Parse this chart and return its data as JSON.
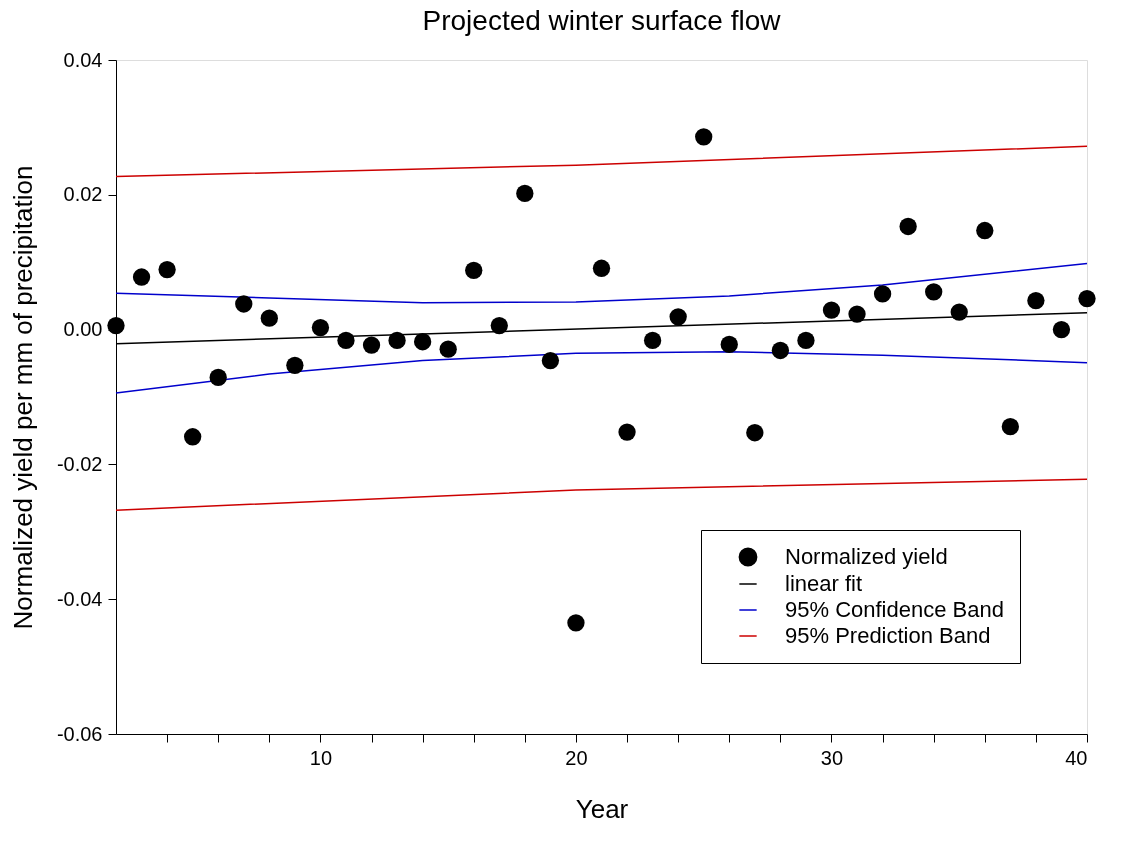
{
  "chart_data": {
    "type": "scatter",
    "title": "Projected winter surface flow",
    "xlabel": "Year",
    "ylabel": "Normalized yield per mm of precipitation",
    "xlim": [
      2,
      40
    ],
    "ylim": [
      -0.06,
      0.04
    ],
    "xticks": [
      {
        "value": 4,
        "label": null
      },
      {
        "value": 6,
        "label": null
      },
      {
        "value": 8,
        "label": null
      },
      10,
      {
        "value": 12,
        "label": null
      },
      {
        "value": 14,
        "label": null
      },
      {
        "value": 16,
        "label": null
      },
      {
        "value": 18,
        "label": null
      },
      20,
      {
        "value": 22,
        "label": null
      },
      {
        "value": 24,
        "label": null
      },
      {
        "value": 26,
        "label": null
      },
      {
        "value": 28,
        "label": null
      },
      30,
      {
        "value": 32,
        "label": null
      },
      {
        "value": 34,
        "label": null
      },
      {
        "value": 36,
        "label": null
      },
      {
        "value": 38,
        "label": null
      },
      40
    ],
    "yticks": [
      {
        "value": -0.06,
        "label": "-0.06"
      },
      {
        "value": -0.04,
        "label": "-0.04"
      },
      {
        "value": -0.02,
        "label": "-0.02"
      },
      {
        "value": 0,
        "label": "0.00"
      },
      {
        "value": 0.02,
        "label": "0.02"
      },
      {
        "value": 0.04,
        "label": "0.04"
      }
    ],
    "grid": false,
    "legend": "bottom right",
    "x": [
      2,
      3,
      4,
      5,
      6,
      7,
      8,
      9,
      10,
      11,
      12,
      13,
      14,
      15,
      16,
      17,
      18,
      19,
      20,
      21,
      22,
      23,
      24,
      25,
      26,
      27,
      28,
      29,
      30,
      31,
      32,
      33,
      34,
      35,
      36,
      37,
      38,
      39,
      40
    ],
    "series": [
      {
        "name": "Normalized yield",
        "color": "#000000",
        "values": [
          0.0006,
          0.0078,
          0.0089,
          -0.0159,
          -0.0071,
          0.0038,
          0.0017,
          -0.0053,
          0.0003,
          -0.0016,
          -0.0023,
          -0.0016,
          -0.0018,
          -0.0029,
          0.0088,
          0.0006,
          0.0202,
          -0.0046,
          -0.0435,
          0.0091,
          -0.0152,
          -0.0016,
          0.0019,
          0.0286,
          -0.0022,
          -0.0153,
          -0.0031,
          -0.0016,
          0.0029,
          0.0023,
          0.0053,
          0.0153,
          0.0056,
          0.0026,
          0.0147,
          -0.0144,
          0.0043,
          0.0,
          0.0046
        ]
      },
      {
        "name": "linear fit",
        "type": "line",
        "color": "#000000",
        "x": [
          2,
          40
        ],
        "values": [
          -0.0021,
          0.0025
        ]
      },
      {
        "name": "95% Confidence Band",
        "type": "line",
        "color": "#0000cc",
        "x": [
          2,
          8,
          14,
          20,
          26,
          32,
          40
        ],
        "values": [
          0.0054,
          0.0047,
          0.004,
          0.0041,
          0.005,
          0.0066,
          0.0098
        ]
      },
      {
        "type": "line",
        "color": "#0000cc",
        "x": [
          2,
          8,
          14,
          20,
          26,
          32,
          40
        ],
        "values": [
          -0.0094,
          -0.0066,
          -0.0046,
          -0.0035,
          -0.0033,
          -0.0038,
          -0.0049
        ]
      },
      {
        "name": "95% Prediction Band",
        "type": "line",
        "color": "#cc0000",
        "x": [
          2,
          20,
          40
        ],
        "values": [
          0.0227,
          0.0244,
          0.0272
        ]
      },
      {
        "type": "line",
        "color": "#cc0000",
        "x": [
          2,
          20,
          40
        ],
        "values": [
          -0.0268,
          -0.0238,
          -0.0222
        ]
      }
    ]
  }
}
